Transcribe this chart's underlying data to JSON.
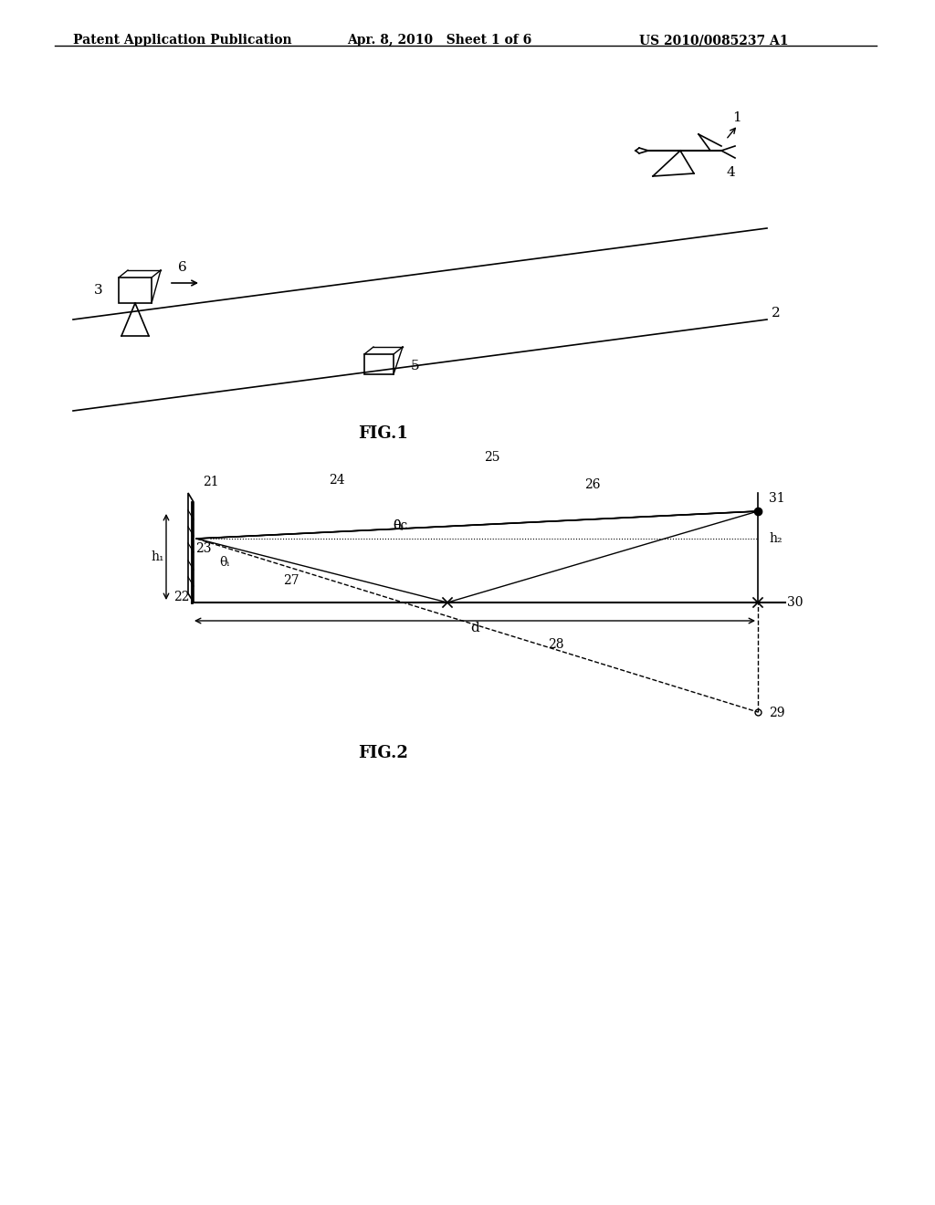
{
  "fig_width": 10.24,
  "fig_height": 13.2,
  "bg_color": "#ffffff",
  "header_text_left": "Patent Application Publication",
  "header_text_mid": "Apr. 8, 2010   Sheet 1 of 6",
  "header_text_right": "US 2010/0085237 A1",
  "fig1_label": "FIG.1",
  "fig2_label": "FIG.2",
  "line_color": "#000000",
  "dashed_color": "#555555",
  "gray_color": "#888888"
}
